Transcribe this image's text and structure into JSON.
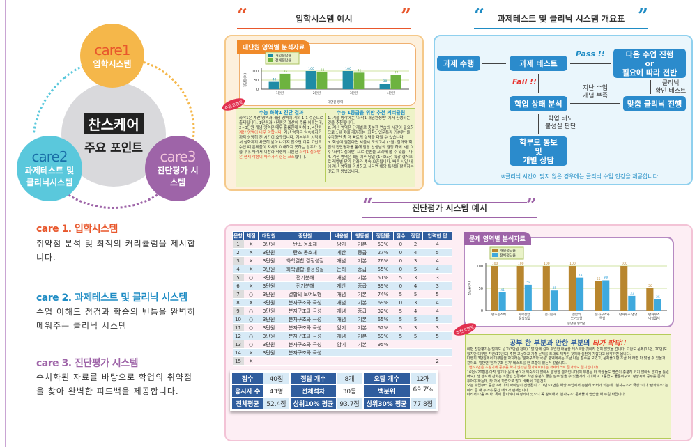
{
  "colors": {
    "care1": "#f5b74a",
    "care2": "#5ac8dc",
    "care3": "#9e64a8",
    "flow": "#2b8bcc",
    "table_header": "#2f5d9e"
  },
  "center": {
    "title": "찬스케어",
    "subtitle": "주요 포인트"
  },
  "cares": [
    {
      "label": "care1",
      "name": "입학시스템",
      "heading": "care 1. 입학시스템",
      "body": "취약점 분석 및 최적의 커리큘럼을 제시합니다."
    },
    {
      "label": "care2",
      "name": "과제테스트 및 클리닉시스템",
      "heading": "care 2. 과제테스트 및 클리닉 시스템",
      "body": "수업 이해도 점검과 학습의 빈틈을 완벽히 메워주는 클리닉 시스템"
    },
    {
      "label": "care3",
      "name": "진단평가 시스템",
      "heading": "care 3. 진단평가 시스템",
      "body": "수치화된 자료를 바탕으로 학업의 취약점을 찾아 완벽한 피드백을 제공합니다."
    }
  ],
  "sections": {
    "admission": "입학시스템 예시",
    "flow": "과제테스트 및 클리닉 시스템 개요표",
    "diagnostic": "진단평가 시스템 예시"
  },
  "admission": {
    "chart_tab": "대단원 영역별 분석자료",
    "badge": "추천코멘트",
    "left_title": "수능 화학1 진단 결과",
    "left_text": "화학1은 계산 영역과 개념 영역이 거의 1:1 수준으로 출제됩니다. 1단원과 4단원은 계산이 주를 이루는데, 2~3단원 개념 영역은 매우 훌륭한데 비해 1, 4단원 ",
    "left_red": "계산 영역이 너무 약합니다.",
    "left_text2": " 계산 영역은 익숙해지기 까지 상당히 긴 시간이 요구됩니다. 기본부터 시작해서 심화까지 차근히 밟아 나가지 않으면 이후 고난도 수업 때 문제풀이 자체도 이해하지 못하는 경우가 많습니다. 따라서 이찬화 학생이 지원한 ",
    "left_red2": "화학1 심화반은 현재 학생이 따라가기 힘든 코스",
    "left_text3": "입니다.",
    "right_title": "수능 1등급을 위한 추천 커리큘럼",
    "right_items": [
      "1. 겨울 방학에는 '화학1 개념완성반' 에서 진행하는 것을 추천합니다.",
      "2. 계산 영역은 단계별로 충분한 연습의 시간이 필요하므로 1월 중에 개강하는 '화학1 입문특강 기본편' 을 수강하면 좀 더 빠르게 실력을 다질 수 있습니다.",
      "3. 학생이 원한다면 서울시 모의고사 (3월) 결과와 학원의 진단평가를 통해 담당 선생님의 결정 하에 3월 이후 '화학1 심화반' 으로 전반을 고려해 볼 수 있습니다.",
      "4. 계산 영역은 3월 이후 당일 (1~Day) 특강 형식으로 레벨별 단기 강좌가 계속 오픈됩니다. 빠른 시일 내에 계산 영역을 완성하고 싶다면 해당 특강을 활용하는 것도 한 방법입니다."
    ]
  },
  "chart_data": [
    {
      "type": "bar",
      "title": "",
      "xlabel": "대단원 영역",
      "ylabel": "정답율(%)",
      "ylim": [
        0,
        100
      ],
      "yticks": [
        0,
        50,
        100
      ],
      "legend": "top-left",
      "categories": [
        "1단원",
        "2단원",
        "3단원",
        "4단원"
      ],
      "series": [
        {
          "name": "개인정답율",
          "color": "#1f8ca6",
          "values": [
            40,
            100,
            100,
            30
          ]
        },
        {
          "name": "전체정답율",
          "color": "#6db33f",
          "values": [
            85,
            93,
            91,
            77
          ]
        }
      ]
    },
    {
      "type": "bar",
      "title": "",
      "xlabel": "중단원 영역별",
      "ylabel": "정답율(%)",
      "ylim": [
        0,
        100
      ],
      "yticks": [
        0,
        50,
        100
      ],
      "legend": "top-left",
      "categories": [
        "탄소동소체",
        "화학결합, 결정성질",
        "전기분해",
        "결합의 보어모형",
        "분자구조와 극성",
        "탄화수소 명명",
        "탄화수소 이성질체"
      ],
      "series": [
        {
          "name": "개인정답율",
          "color": "#b8862e",
          "values": [
            100,
            100,
            100,
            100,
            66,
            100,
            50
          ]
        },
        {
          "name": "전체정답율",
          "color": "#3fa9dd",
          "values": [
            41,
            58,
            45,
            74,
            68,
            33,
            25
          ]
        }
      ]
    }
  ],
  "flow": {
    "boxes": {
      "task": "과제 수행",
      "test": "과제 테스트",
      "next": "다음 수업 진행\nor\n필요에 따라 전반",
      "analysis": "학업 상태 분석",
      "clinic": "맞춤 클리닉 진행",
      "parent": "학부모 통보\n및\n개별 상담"
    },
    "pass": "Pass !!",
    "fail": "Fail !!",
    "lack": "지난 수업\n개념 부족",
    "confirm": "클리닉\n확인 테스트",
    "attitude": "학업 태도\n불성실 판단",
    "note": "※클리닉 시간이 맞지 않은 경우에는 클리닉 수업 인강을 제공합니다."
  },
  "table": {
    "headers": [
      "문항",
      "채점",
      "대단원",
      "중단원",
      "내용별",
      "행동별",
      "정답률",
      "점수",
      "정답",
      "입력한 답"
    ],
    "rows": [
      [
        "1",
        "X",
        "3단원",
        "탄소 동소체",
        "암기",
        "기본",
        "53%",
        "0",
        "2",
        "4"
      ],
      [
        "2",
        "X",
        "3단원",
        "탄소 동소체",
        "계산",
        "중급",
        "27%",
        "0",
        "4",
        "5"
      ],
      [
        "3",
        "X",
        "3단원",
        "화학결합,결정성질",
        "개념",
        "기본",
        "76%",
        "0",
        "3",
        "4"
      ],
      [
        "4",
        "X",
        "3단원",
        "화학결합,결정성질",
        "논리",
        "중급",
        "55%",
        "0",
        "5",
        "4"
      ],
      [
        "5",
        "○",
        "3단원",
        "전기분해",
        "개념",
        "기본",
        "51%",
        "5",
        "3",
        "3"
      ],
      [
        "6",
        "X",
        "3단원",
        "전기분해",
        "계산",
        "중급",
        "39%",
        "0",
        "4",
        "3"
      ],
      [
        "7",
        "○",
        "3단원",
        "결합의 보어모형",
        "개념",
        "기본",
        "74%",
        "5",
        "5",
        "5"
      ],
      [
        "8",
        "X",
        "3단원",
        "분자구조와 극성",
        "개념",
        "기본",
        "69%",
        "0",
        "3",
        "4"
      ],
      [
        "9",
        "○",
        "3단원",
        "분자구조와 극성",
        "개념",
        "중급",
        "32%",
        "5",
        "4",
        "4"
      ],
      [
        "10",
        "○",
        "3단원",
        "분자구조와 극성",
        "개념",
        "기본",
        "65%",
        "5",
        "5",
        "5"
      ],
      [
        "11",
        "○",
        "3단원",
        "분자구조와 극성",
        "암기",
        "기본",
        "62%",
        "5",
        "3",
        "3"
      ],
      [
        "12",
        "○",
        "3단원",
        "분자구조와 극성",
        "개념",
        "기본",
        "69%",
        "5",
        "5",
        "5"
      ],
      [
        "13",
        "○",
        "3단원",
        "분자구조와 극성",
        "암기",
        "기본",
        "95%",
        "",
        "",
        ""
      ],
      [
        "14",
        "X",
        "3단원",
        "분자구조와 극성",
        "",
        "",
        "",
        "",
        "",
        ""
      ],
      [
        "15",
        "X",
        "",
        "",
        "",
        "",
        "",
        "",
        "",
        "2"
      ]
    ]
  },
  "score": [
    [
      {
        "k": "점수",
        "v": "40점"
      },
      {
        "k": "응시자 수",
        "v": "43명"
      },
      {
        "k": "전체평균",
        "v": "52.4점"
      }
    ],
    [
      {
        "k": "정답 개수",
        "v": "8개"
      },
      {
        "k": "전체석차",
        "v": "30등"
      },
      {
        "k": "상위10% 평균",
        "v": "93.7점"
      }
    ],
    [
      {
        "k": "오답 개수",
        "v": "12개"
      },
      {
        "k": "백분위",
        "v": "69.7%"
      },
      {
        "k": "상위30% 평균",
        "v": "77.8점"
      }
    ]
  ],
  "diagnostic": {
    "chart_tab": "문제 영역별 분석자료",
    "badge": "추천코멘트",
    "headline": "공부 한 부분과 안한 부분의 ",
    "headline_red": "티가 팍팍!!",
    "paragraphs": [
      "이번 진단평가는 범위도 넓고(3단원 전체) 1달 안에 걸쳐 수업한 내용을 테스트한 것이라 쉽지 않았을 겁니다. 고난도 문제(15번, 20번)도 있지만 대부분 작년(17년도) 주변 고등학교 기출 문제를 토대로 제작한 것이라 실전에 가깝다고 생각하면 됩니다.",
      "다행히 3단원에서 대부분을 차지하는 '분자구조와 극성' 영역에서는 조금 나은 점수를 보였고, 문제풀이만 조금 더 하면 다 맞을 수 있을거 같아요. 일단엔 '분자구조 암기' 테스트를 한 보충이 있는거 같습니다.",
      "1번~7번은 초창기에 공부를 하지 않았던 결과예요(이는 과제테스트 결과와도 일치합니다).",
      "16번~20번은 아직 암기나 문제 풀이가 익숙하지 않아서 발생한 결과입니다(이 부분은 타 학생들도 연습이 충분히 되지 않아서 많이들 틀렸어요). 생 생각에 찬화는 조금만 신경써서 하면 충분히 좋은 점수 받을 수 있을거라 기대해요. 1등급도 물론이구요. 평상시에 공부를 좀 해 두어야 하는데, 타 과목 학습으로 많이 바빠서 그런건지..",
      "오는 수업부터 중간고사 대비 파이널이 진행됩니다. 1번~7번은 해당 수업에서 충분히 커버가 되는데, '분자구조와 극성' 이나 '탄화수소' 는 미리 좀 해 두어야 중간 대비가 편해집니다.",
      "따라서 다음 주 화, 목에 클리닉이 예정되어 있으니 꼭 참석해서 '분자구조' 문제풀이 연습을 해 두길 바랍니다."
    ]
  }
}
